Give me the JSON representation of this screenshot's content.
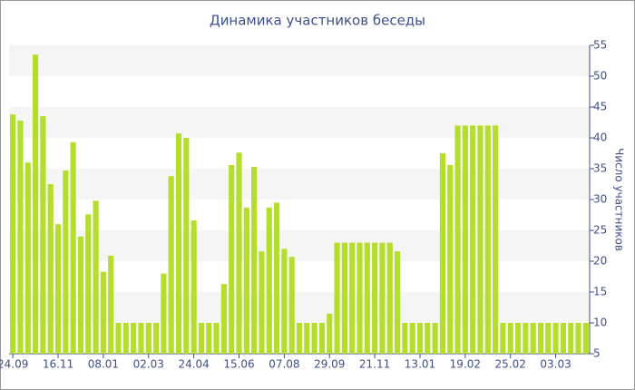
{
  "chart_data": {
    "type": "bar",
    "title": "Динамика участников беседы",
    "y_axis_label": "Число участников",
    "categories": [
      "24.09",
      null,
      null,
      null,
      null,
      null,
      "16.11",
      null,
      null,
      null,
      null,
      null,
      "08.01",
      null,
      null,
      null,
      null,
      null,
      "02.03",
      null,
      null,
      null,
      null,
      null,
      "24.04",
      null,
      null,
      null,
      null,
      null,
      "15.06",
      null,
      null,
      null,
      null,
      null,
      "07.08",
      null,
      null,
      null,
      null,
      null,
      "29.09",
      null,
      null,
      null,
      null,
      null,
      "21.11",
      null,
      null,
      null,
      null,
      null,
      "13.01",
      null,
      null,
      null,
      null,
      null,
      "19.02",
      null,
      null,
      null,
      null,
      null,
      "25.02",
      null,
      null,
      null,
      null,
      null,
      "03.03",
      null,
      null,
      null,
      null
    ],
    "values": [
      43.8,
      42.8,
      36,
      53.5,
      43.5,
      32.5,
      26,
      34.7,
      39.3,
      24,
      27.6,
      29.8,
      18.3,
      20.9,
      10,
      10,
      10,
      10,
      10,
      10,
      18,
      33.8,
      40.7,
      40,
      26.6,
      10,
      10,
      10,
      16.3,
      35.6,
      37.6,
      28.7,
      35.3,
      21.6,
      28.7,
      29.5,
      22,
      20.7,
      10,
      10,
      10,
      10,
      11.5,
      23,
      23,
      23,
      23,
      23,
      23,
      23,
      23,
      21.6,
      10,
      10,
      10,
      10,
      10,
      37.5,
      35.6,
      42,
      42,
      42,
      42,
      42,
      42,
      10,
      10,
      10,
      10,
      10,
      10,
      10,
      10,
      10,
      10,
      10,
      10
    ],
    "color": "#b5dd2b",
    "ylim": [
      5,
      55
    ],
    "yticks": [
      5,
      10,
      15,
      20,
      25,
      30,
      35,
      40,
      45,
      50,
      55
    ],
    "y_axis_side": "right",
    "bands": true
  }
}
